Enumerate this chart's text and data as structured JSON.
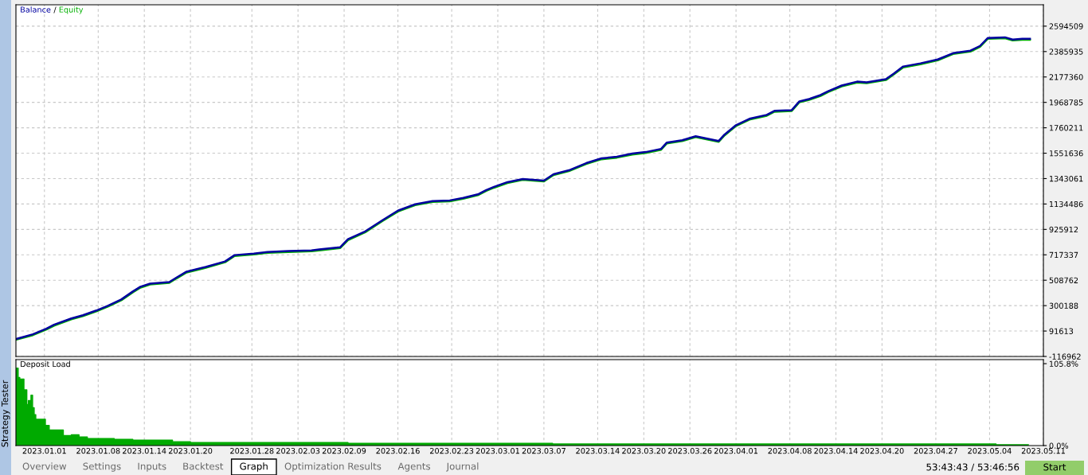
{
  "chart_data": [
    {
      "type": "line",
      "legend": "top left",
      "grid": true,
      "tick_labels": "y",
      "annotations": [
        "/"
      ],
      "xlim": [
        "2022-12-28T07:00",
        "2023-05-11"
      ],
      "ylim": [
        -116962,
        2770000
      ],
      "xticks": [
        {
          "value": "2023-01-01",
          "label": null
        },
        {
          "value": "2023-01-08",
          "label": null
        },
        {
          "value": "2023-01-14",
          "label": null
        },
        {
          "value": "2023-01-20",
          "label": null
        },
        {
          "value": "2023-01-28",
          "label": null
        },
        {
          "value": "2023-02-03",
          "label": null
        },
        {
          "value": "2023-02-09",
          "label": null
        },
        {
          "value": "2023-02-16",
          "label": null
        },
        {
          "value": "2023-02-23",
          "label": null
        },
        {
          "value": "2023-03-01",
          "label": null
        },
        {
          "value": "2023-03-07",
          "label": null
        },
        {
          "value": "2023-03-14",
          "label": null
        },
        {
          "value": "2023-03-20",
          "label": null
        },
        {
          "value": "2023-03-26",
          "label": null
        },
        {
          "value": "2023-04-01",
          "label": null
        },
        {
          "value": "2023-04-08",
          "label": null
        },
        {
          "value": "2023-04-14",
          "label": null
        },
        {
          "value": "2023-04-20",
          "label": null
        },
        {
          "value": "2023-04-27",
          "label": null
        },
        {
          "value": "2023-05-04",
          "label": null
        },
        {
          "value": "2023-05-11",
          "label": null
        }
      ],
      "yticks": [
        -116962,
        91613,
        300188,
        508762,
        717337,
        925912,
        1134486,
        1343061,
        1551636,
        1760211,
        1968785,
        2177360,
        2385935,
        2594509
      ],
      "x": [
        "2022-12-28T07:00",
        "2022-12-30T12:00",
        "2023-01-01T06:00",
        "2023-01-02T06:00",
        "2023-01-04T12:00",
        "2023-01-06",
        "2023-01-07T18:00",
        "2023-01-09T06:00",
        "2023-01-11",
        "2023-01-12T12:00",
        "2023-01-13T12:00",
        "2023-01-14T18:00",
        "2023-01-17T06:00",
        "2023-01-18T06:00",
        "2023-01-19T12:00",
        "2023-01-22",
        "2023-01-24T12:00",
        "2023-01-25T18:00",
        "2023-01-28T06:00",
        "2023-01-30",
        "2023-02-01T18:00",
        "2023-02-04T18:00",
        "2023-02-05T18:00",
        "2023-02-08T12:00",
        "2023-02-09T12:00",
        "2023-02-11T18:00",
        "2023-02-14",
        "2023-02-16",
        "2023-02-18T06:00",
        "2023-02-20T12:00",
        "2023-02-22T18:00",
        "2023-02-24T12:00",
        "2023-02-26T12:00",
        "2023-02-27T12:00",
        "2023-02-28T12:00",
        "2023-03-02T06:00",
        "2023-03-04T06:00",
        "2023-03-07",
        "2023-03-08T06:00",
        "2023-03-10T06:00",
        "2023-03-12T12:00",
        "2023-03-14T12:00",
        "2023-03-16T12:00",
        "2023-03-18T12:00",
        "2023-03-20T06:00",
        "2023-03-22T06:00",
        "2023-03-23",
        "2023-03-25",
        "2023-03-26T18:00",
        "2023-03-27T18:00",
        "2023-03-29T18:00",
        "2023-03-30T12:00",
        "2023-04-01",
        "2023-04-02T18:00",
        "2023-04-05",
        "2023-04-06",
        "2023-04-08T06:00",
        "2023-04-09T06:00",
        "2023-04-10T12:00",
        "2023-04-12",
        "2023-04-13",
        "2023-04-14T18:00",
        "2023-04-16T18:00",
        "2023-04-18",
        "2023-04-20T12:00",
        "2023-04-21T12:00",
        "2023-04-22T18:00",
        "2023-04-25",
        "2023-04-27T06:00",
        "2023-04-29T06:00",
        "2023-05-01T12:00",
        "2023-05-02T18:00",
        "2023-05-03T18:00",
        "2023-05-06",
        "2023-05-07",
        "2023-05-08T06:00",
        "2023-05-09T06:00"
      ],
      "series": [
        {
          "name": "Equity",
          "color": "#00b000",
          "values": [
            20000,
            58000,
            104000,
            136000,
            188000,
            214000,
            253000,
            292000,
            344000,
            409000,
            448000,
            474000,
            487000,
            526000,
            572000,
            611000,
            656000,
            708000,
            721000,
            734000,
            741000,
            747000,
            754000,
            773000,
            838000,
            903000,
            995000,
            1073000,
            1125000,
            1151000,
            1157000,
            1177000,
            1209000,
            1242000,
            1268000,
            1307000,
            1333000,
            1320000,
            1372000,
            1404000,
            1463000,
            1502000,
            1515000,
            1541000,
            1554000,
            1580000,
            1632000,
            1651000,
            1684000,
            1671000,
            1645000,
            1697000,
            1775000,
            1827000,
            1859000,
            1892000,
            1898000,
            1970000,
            1989000,
            2022000,
            2054000,
            2100000,
            2132000,
            2126000,
            2152000,
            2197000,
            2256000,
            2282000,
            2314000,
            2366000,
            2386000,
            2425000,
            2490000,
            2496000,
            2477000,
            2483000,
            2483000
          ]
        },
        {
          "name": "Balance",
          "color": "#0000a0",
          "values": [
            26000,
            65000,
            111000,
            143000,
            195000,
            221000,
            260000,
            299000,
            351000,
            416000,
            455000,
            481000,
            494000,
            533000,
            579000,
            618000,
            663000,
            715000,
            728000,
            741000,
            748000,
            754000,
            761000,
            780000,
            845000,
            910000,
            1002000,
            1080000,
            1132000,
            1158000,
            1164000,
            1184000,
            1216000,
            1249000,
            1275000,
            1314000,
            1340000,
            1327000,
            1379000,
            1411000,
            1470000,
            1509000,
            1522000,
            1548000,
            1561000,
            1587000,
            1639000,
            1658000,
            1691000,
            1678000,
            1652000,
            1704000,
            1782000,
            1834000,
            1866000,
            1899000,
            1905000,
            1977000,
            1996000,
            2029000,
            2061000,
            2107000,
            2139000,
            2133000,
            2159000,
            2204000,
            2263000,
            2289000,
            2321000,
            2373000,
            2393000,
            2432000,
            2497000,
            2503000,
            2484000,
            2490000,
            2490000
          ]
        }
      ]
    },
    {
      "type": "area",
      "title": "Deposit Load",
      "grid": "x",
      "color": "#00aa00",
      "xlim": [
        "2022-12-28T07:00",
        "2023-05-11"
      ],
      "ylim": [
        0,
        111
      ],
      "xticks": [
        {
          "value": "2023-01-01",
          "label": "2023.01.01"
        },
        {
          "value": "2023-01-08",
          "label": "2023.01.08"
        },
        {
          "value": "2023-01-14",
          "label": "2023.01.14"
        },
        {
          "value": "2023-01-20",
          "label": "2023.01.20"
        },
        {
          "value": "2023-01-28",
          "label": "2023.01.28"
        },
        {
          "value": "2023-02-03",
          "label": "2023.02.03"
        },
        {
          "value": "2023-02-09",
          "label": "2023.02.09"
        },
        {
          "value": "2023-02-16",
          "label": "2023.02.16"
        },
        {
          "value": "2023-02-23",
          "label": "2023.02.23"
        },
        {
          "value": "2023-03-01",
          "label": "2023.03.01"
        },
        {
          "value": "2023-03-07",
          "label": "2023.03.07"
        },
        {
          "value": "2023-03-14",
          "label": "2023.03.14"
        },
        {
          "value": "2023-03-20",
          "label": "2023.03.20"
        },
        {
          "value": "2023-03-26",
          "label": "2023.03.26"
        },
        {
          "value": "2023-04-01",
          "label": "2023.04.01"
        },
        {
          "value": "2023-04-08",
          "label": "2023.04.08"
        },
        {
          "value": "2023-04-14",
          "label": "2023.04.14"
        },
        {
          "value": "2023-04-20",
          "label": "2023.04.20"
        },
        {
          "value": "2023-04-27",
          "label": "2023.04.27"
        },
        {
          "value": "2023-05-04",
          "label": "2023.05.04"
        },
        {
          "value": "2023-05-11",
          "label": "2023.05.11"
        }
      ],
      "yticks": [
        {
          "value": 0,
          "label": "0.0%"
        },
        {
          "value": 105.8,
          "label": "105.8%"
        }
      ],
      "x": [
        "2022-12-28T07:00",
        "2022-12-28T14:00",
        "2022-12-28T19:00",
        "2022-12-29T01:00",
        "2022-12-29T03:00",
        "2022-12-29T08:00",
        "2022-12-29T17:00",
        "2022-12-29T22:00",
        "2022-12-30T06:00",
        "2022-12-30T11:00",
        "2022-12-30T16:00",
        "2022-12-30T21:00",
        "2023-01-01T03:00",
        "2023-01-01T15:00",
        "2023-01-03T11:00",
        "2023-01-04T12:00",
        "2023-01-05T12:00",
        "2023-01-06T14:00",
        "2023-01-10T02:00",
        "2023-01-12T12:00",
        "2023-01-17T16:00",
        "2023-01-20",
        "2023-02-09T12:00",
        "2023-03-08T03:00",
        "2023-05-04T20:00",
        "2023-05-09T01:00"
      ],
      "values": [
        100,
        88,
        86,
        77,
        86,
        72,
        53,
        58,
        65,
        49,
        40,
        34,
        26,
        20,
        13,
        14,
        11,
        9,
        8,
        7,
        5,
        4,
        3,
        2,
        1,
        1
      ]
    },
    {
      "type": "other",
      "annotations": [
        "Strategy Tester",
        "Overview",
        "Settings",
        "Inputs",
        "Backtest",
        "Graph",
        "Optimization Results",
        "Agents",
        "Journal",
        "53:43:43 / 53:46:56",
        "Start"
      ]
    }
  ]
}
